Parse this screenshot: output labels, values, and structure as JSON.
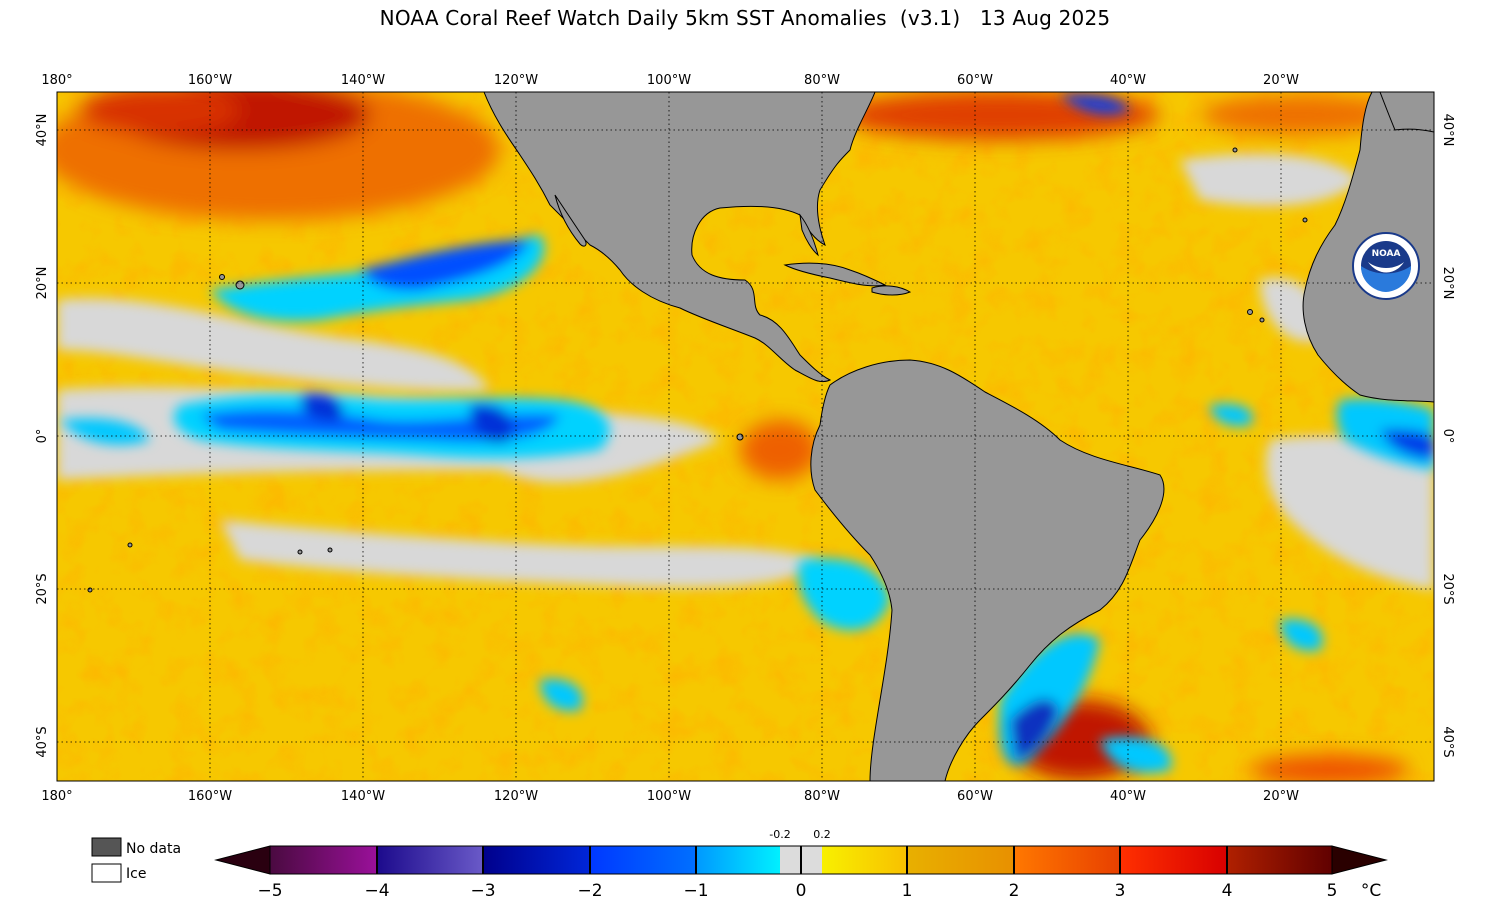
{
  "title": "NOAA Coral Reef Watch Daily 5km SST Anomalies  (v3.1)   13 Aug 2025",
  "map": {
    "lon_labels": [
      "180°",
      "160°W",
      "140°W",
      "120°W",
      "100°W",
      "80°W",
      "60°W",
      "40°W",
      "20°W"
    ],
    "lat_labels": [
      "40°N",
      "20°N",
      "0°",
      "20°S",
      "40°S"
    ],
    "land_color": "#979797",
    "logo_text": "NOAA"
  },
  "legend": {
    "nodata_label": "No data",
    "nodata_color": "#555555",
    "ice_label": "Ice",
    "ice_color": "#ffffff"
  },
  "colorbar": {
    "min": -5,
    "max": 5,
    "tick_labels": [
      "−5",
      "−4",
      "−3",
      "−2",
      "−1",
      "0",
      "1",
      "2",
      "3",
      "4",
      "5"
    ],
    "unit": "°C",
    "neutral_low": "-0.2",
    "neutral_high": "0.2",
    "colors": {
      "m5": "#3a0018",
      "m4": "#8a0a8a",
      "m3": "#1c0a8c",
      "m2": "#0000a0",
      "m1": "#0050ff",
      "m0": "#00dcff",
      "neutral": "#dcdcdc",
      "p0": "#f5f000",
      "p1": "#e8a800",
      "p2": "#ff7000",
      "p3": "#d80000",
      "p4": "#a01000",
      "p5": "#300000"
    }
  }
}
